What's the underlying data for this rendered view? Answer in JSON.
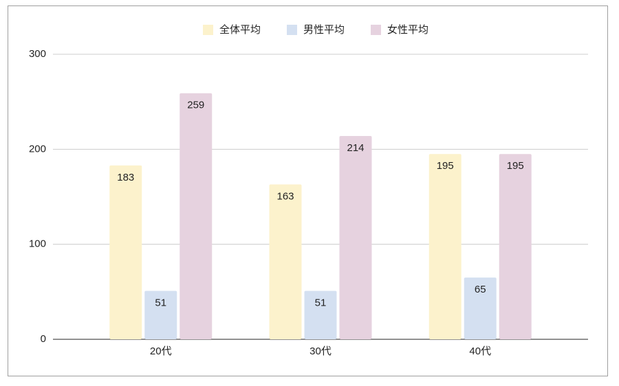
{
  "chart_data": {
    "type": "bar",
    "categories": [
      "20代",
      "30代",
      "40代"
    ],
    "series": [
      {
        "name": "全体平均",
        "color": "#fcf2cc",
        "values": [
          183,
          163,
          195
        ]
      },
      {
        "name": "男性平均",
        "color": "#d4e0f1",
        "values": [
          51,
          51,
          65
        ]
      },
      {
        "name": "女性平均",
        "color": "#e6d2df",
        "values": [
          259,
          214,
          195
        ]
      }
    ],
    "ylim": [
      0,
      300
    ],
    "yticks": [
      0,
      100,
      200,
      300
    ],
    "grid": true,
    "legend": "top"
  }
}
